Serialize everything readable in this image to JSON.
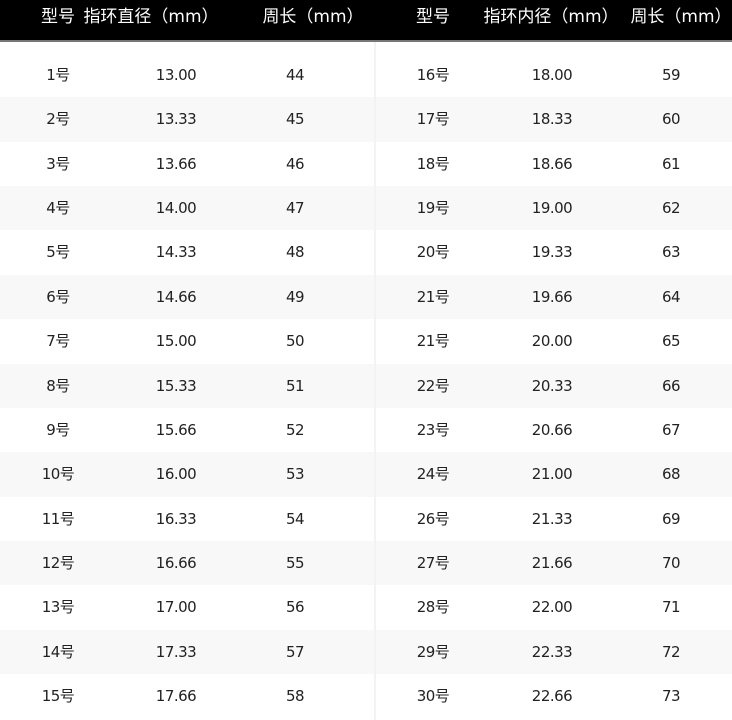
{
  "header": {
    "left": [
      "型号",
      "指环直径（mm）",
      "周长（mm）"
    ],
    "right": [
      "型号",
      "指环内径（mm）",
      "周长（mm）"
    ]
  },
  "rows": [
    [
      [
        "1号",
        "13.00",
        "44"
      ],
      [
        "16号",
        "18.00",
        "59"
      ]
    ],
    [
      [
        "2号",
        "13.33",
        "45"
      ],
      [
        "17号",
        "18.33",
        "60"
      ]
    ],
    [
      [
        "3号",
        "13.66",
        "46"
      ],
      [
        "18号",
        "18.66",
        "61"
      ]
    ],
    [
      [
        "4号",
        "14.00",
        "47"
      ],
      [
        "19号",
        "19.00",
        "62"
      ]
    ],
    [
      [
        "5号",
        "14.33",
        "48"
      ],
      [
        "20号",
        "19.33",
        "63"
      ]
    ],
    [
      [
        "6号",
        "14.66",
        "49"
      ],
      [
        "21号",
        "19.66",
        "64"
      ]
    ],
    [
      [
        "7号",
        "15.00",
        "50"
      ],
      [
        "21号",
        "20.00",
        "65"
      ]
    ],
    [
      [
        "8号",
        "15.33",
        "51"
      ],
      [
        "22号",
        "20.33",
        "66"
      ]
    ],
    [
      [
        "9号",
        "15.66",
        "52"
      ],
      [
        "23号",
        "20.66",
        "67"
      ]
    ],
    [
      [
        "10号",
        "16.00",
        "53"
      ],
      [
        "24号",
        "21.00",
        "68"
      ]
    ],
    [
      [
        "11号",
        "16.33",
        "54"
      ],
      [
        "26号",
        "21.33",
        "69"
      ]
    ],
    [
      [
        "12号",
        "16.66",
        "55"
      ],
      [
        "27号",
        "21.66",
        "70"
      ]
    ],
    [
      [
        "13号",
        "17.00",
        "56"
      ],
      [
        "28号",
        "22.00",
        "71"
      ]
    ],
    [
      [
        "14号",
        "17.33",
        "57"
      ],
      [
        "29号",
        "22.33",
        "72"
      ]
    ],
    [
      [
        "15号",
        "17.66",
        "58"
      ],
      [
        "30号",
        "22.66",
        "73"
      ]
    ]
  ]
}
